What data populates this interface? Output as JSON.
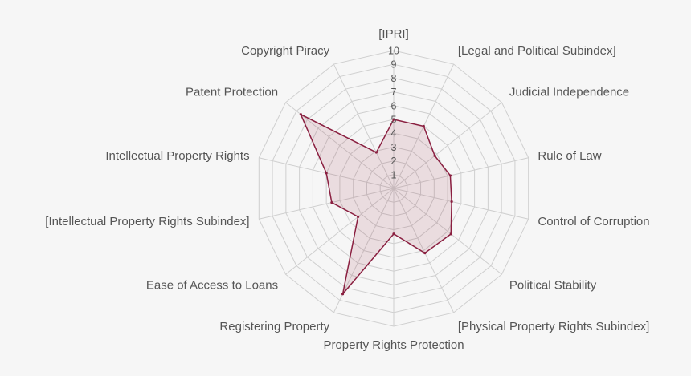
{
  "chart_data": {
    "type": "radar",
    "title": "",
    "range": [
      0,
      10
    ],
    "ticks": [
      "1",
      "2",
      "3",
      "4",
      "5",
      "6",
      "7",
      "8",
      "9",
      "10"
    ],
    "grid": true,
    "categories": [
      "[IPRI]",
      "[Legal and Political Subindex]",
      "Judicial Independence",
      "Rule of Law",
      "Control of Corruption",
      "Political Stability",
      "[Physical Property Rights Subindex]",
      "Property Rights Protection",
      "Registering Property",
      "Ease of Access to Loans",
      "[Intellectual Property Rights Subindex]",
      "Intellectual Property Rights",
      "Patent Protection",
      "Copyright Piracy"
    ],
    "series": [
      {
        "values": [
          5.0,
          5.0,
          3.8,
          4.2,
          4.3,
          5.3,
          5.2,
          3.3,
          8.5,
          3.3,
          4.6,
          5.0,
          8.6,
          2.9
        ],
        "color": "#8a1f40"
      }
    ]
  },
  "colors": {
    "background": "#f6f6f6",
    "grid": "#cfcfcf",
    "series_line": "#8a1f40",
    "text": "#555555"
  }
}
